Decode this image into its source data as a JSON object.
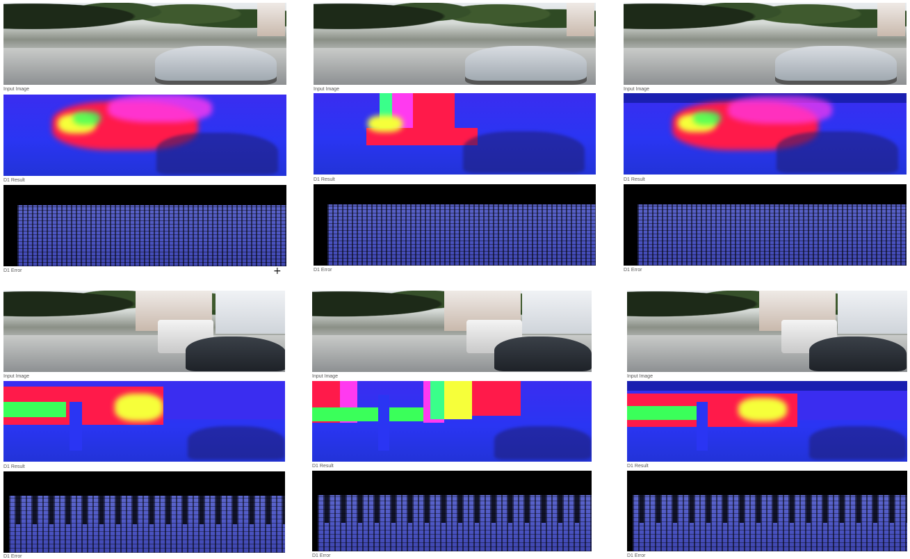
{
  "captions": {
    "input": "Input Image",
    "result": "D1 Result",
    "error": "D1 Error"
  },
  "cursor_icon": "crosshair-cursor-icon",
  "accent_colors": {
    "disparity_low": "#2a35f3",
    "disparity_mid": "#ff1a4a",
    "disparity_high": "#f6ff3a",
    "error_good": "#4a53c0"
  }
}
